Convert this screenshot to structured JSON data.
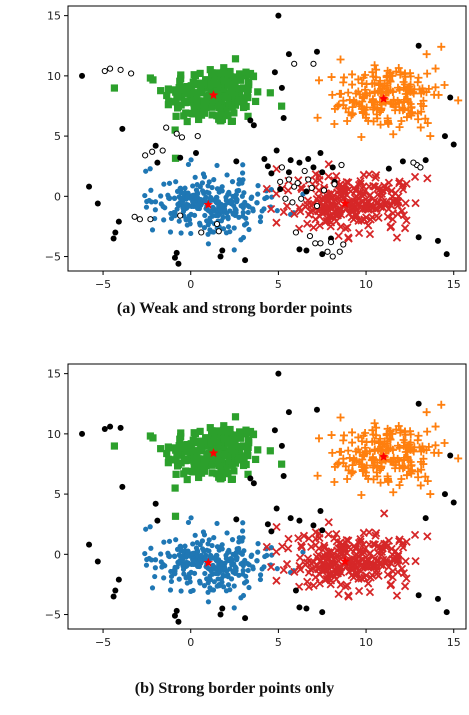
{
  "captions": [
    "(a) Weak and strong border points",
    "(b) Strong border points only"
  ],
  "colors": {
    "blue": "#1f77b4",
    "green": "#2ca02c",
    "orange": "#ff7f0e",
    "red": "#d62728",
    "noise": "#000000",
    "center": "#ff0000"
  },
  "chart_data": [
    {
      "type": "scatter",
      "title": "",
      "xlabel": "",
      "ylabel": "",
      "xlim": [
        -7,
        15.7
      ],
      "ylim": [
        -6.2,
        15.8
      ],
      "xticks": [
        -5,
        0,
        5,
        10,
        15
      ],
      "yticks": [
        -5,
        0,
        5,
        10,
        15
      ],
      "xtick_labels": [
        "−5",
        "0",
        "5",
        "10",
        "15"
      ],
      "ytick_labels": [
        "−5",
        "0",
        "5",
        "10",
        "15"
      ],
      "grid": false,
      "clusters": [
        {
          "marker": "square",
          "color": "green",
          "center": [
            1.3,
            8.4
          ],
          "spread": [
            1.4,
            1.25
          ],
          "count": 230
        },
        {
          "marker": "plus",
          "color": "orange",
          "center": [
            11.0,
            8.2
          ],
          "spread": [
            1.6,
            1.4
          ],
          "count": 210
        },
        {
          "marker": "dot",
          "color": "blue",
          "center": [
            1.0,
            -0.7
          ],
          "spread": [
            1.7,
            1.3
          ],
          "count": 270
        },
        {
          "marker": "x",
          "color": "red",
          "center": [
            9.0,
            -0.5
          ],
          "spread": [
            1.7,
            1.3
          ],
          "count": 260
        }
      ],
      "centers": [
        [
          1.3,
          8.4
        ],
        [
          11.0,
          8.1
        ],
        [
          1.0,
          -0.7
        ],
        [
          8.8,
          -0.6
        ]
      ],
      "noise_points": [
        [
          -6.2,
          10.0
        ],
        [
          -5.8,
          0.8
        ],
        [
          -5.3,
          -0.6
        ],
        [
          -4.3,
          -3.0
        ],
        [
          -4.4,
          -3.5
        ],
        [
          -0.8,
          -4.7
        ],
        [
          -0.9,
          -5.1
        ],
        [
          -0.7,
          -5.6
        ],
        [
          1.8,
          -4.5
        ],
        [
          1.7,
          -5.0
        ],
        [
          3.1,
          -5.3
        ],
        [
          5.0,
          15.0
        ],
        [
          5.6,
          11.8
        ],
        [
          7.2,
          12.0
        ],
        [
          7.5,
          -4.8
        ],
        [
          6.6,
          -4.5
        ],
        [
          6.2,
          -4.4
        ],
        [
          8.0,
          -3.5
        ],
        [
          13.0,
          12.5
        ],
        [
          13.0,
          -3.4
        ],
        [
          14.1,
          -3.7
        ],
        [
          14.6,
          -4.8
        ],
        [
          14.8,
          8.2
        ],
        [
          14.5,
          5.0
        ],
        [
          15.0,
          4.3
        ],
        [
          13.4,
          3.0
        ],
        [
          3.6,
          5.9
        ],
        [
          3.4,
          6.3
        ],
        [
          4.9,
          3.8
        ],
        [
          4.4,
          2.5
        ],
        [
          4.6,
          1.9
        ],
        [
          5.3,
          6.5
        ],
        [
          5.2,
          9.0
        ],
        [
          4.8,
          10.3
        ],
        [
          5.7,
          3.0
        ],
        [
          6.2,
          2.8
        ],
        [
          7.5,
          2.0
        ],
        [
          8.2,
          1.2
        ],
        [
          7.0,
          2.4
        ],
        [
          5.1,
          0.6
        ],
        [
          6.6,
          0.4
        ],
        [
          -4.1,
          -2.1
        ],
        [
          -2.0,
          4.2
        ],
        [
          -1.9,
          2.8
        ],
        [
          -3.9,
          5.6
        ],
        [
          2.6,
          2.9
        ],
        [
          7.4,
          3.6
        ]
      ],
      "weak_border_points": [
        [
          -4.9,
          10.4
        ],
        [
          -4.6,
          10.6
        ],
        [
          -4.0,
          10.5
        ],
        [
          -3.4,
          10.2
        ],
        [
          5.9,
          11.0
        ],
        [
          7.0,
          11.0
        ],
        [
          -1.4,
          5.7
        ],
        [
          -0.8,
          5.2
        ],
        [
          -0.5,
          4.9
        ],
        [
          0.4,
          5.0
        ],
        [
          -2.6,
          3.4
        ],
        [
          -2.2,
          3.7
        ],
        [
          -1.6,
          3.8
        ],
        [
          -3.2,
          -1.7
        ],
        [
          -2.9,
          -1.9
        ],
        [
          -2.3,
          -1.9
        ],
        [
          -0.6,
          -1.6
        ],
        [
          0.6,
          -3.0
        ],
        [
          1.5,
          -2.3
        ],
        [
          1.6,
          -2.9
        ],
        [
          5.1,
          1.2
        ],
        [
          5.6,
          1.4
        ],
        [
          5.9,
          0.8
        ],
        [
          6.1,
          1.1
        ],
        [
          6.5,
          2.1
        ],
        [
          6.7,
          1.4
        ],
        [
          6.9,
          0.7
        ],
        [
          5.4,
          -0.2
        ],
        [
          5.8,
          -0.5
        ],
        [
          6.0,
          -3.0
        ],
        [
          6.8,
          -3.3
        ],
        [
          7.1,
          -3.9
        ],
        [
          7.4,
          -3.9
        ],
        [
          7.8,
          -4.6
        ],
        [
          8.1,
          -5.0
        ],
        [
          8.5,
          -4.6
        ],
        [
          8.0,
          -3.8
        ],
        [
          8.7,
          -4.0
        ],
        [
          7.6,
          0.5
        ],
        [
          8.2,
          1.0
        ],
        [
          8.6,
          2.6
        ],
        [
          12.9,
          2.6
        ],
        [
          13.1,
          2.4
        ],
        [
          12.7,
          2.8
        ],
        [
          6.3,
          -0.2
        ],
        [
          7.2,
          -0.8
        ],
        [
          5.2,
          2.4
        ]
      ],
      "strong_border_points": [
        [
          -0.6,
          3.2
        ],
        [
          0.3,
          3.6
        ],
        [
          4.2,
          3.1
        ],
        [
          5.6,
          2.0
        ],
        [
          6.7,
          3.1
        ],
        [
          8.1,
          2.4
        ],
        [
          11.3,
          2.3
        ],
        [
          12.1,
          2.9
        ]
      ]
    },
    {
      "type": "scatter",
      "title": "",
      "xlabel": "",
      "ylabel": "",
      "xlim": [
        -7,
        15.7
      ],
      "ylim": [
        -6.2,
        15.8
      ],
      "xticks": [
        -5,
        0,
        5,
        10,
        15
      ],
      "yticks": [
        -5,
        0,
        5,
        10,
        15
      ],
      "xtick_labels": [
        "−5",
        "0",
        "5",
        "10",
        "15"
      ],
      "ytick_labels": [
        "−5",
        "0",
        "5",
        "10",
        "15"
      ],
      "grid": false,
      "clusters": [
        {
          "marker": "square",
          "color": "green",
          "center": [
            1.3,
            8.4
          ],
          "spread": [
            1.4,
            1.25
          ],
          "count": 230
        },
        {
          "marker": "plus",
          "color": "orange",
          "center": [
            11.0,
            8.2
          ],
          "spread": [
            1.6,
            1.4
          ],
          "count": 210
        },
        {
          "marker": "dot",
          "color": "blue",
          "center": [
            1.0,
            -0.7
          ],
          "spread": [
            1.7,
            1.3
          ],
          "count": 280
        },
        {
          "marker": "x",
          "color": "red",
          "center": [
            9.0,
            -0.5
          ],
          "spread": [
            1.7,
            1.3
          ],
          "count": 270
        }
      ],
      "centers": [
        [
          1.3,
          8.4
        ],
        [
          11.0,
          8.1
        ],
        [
          1.0,
          -0.7
        ],
        [
          8.8,
          -0.6
        ]
      ],
      "noise_points": [
        [
          -6.2,
          10.0
        ],
        [
          -5.8,
          0.8
        ],
        [
          -5.3,
          -0.6
        ],
        [
          -4.3,
          -3.0
        ],
        [
          -4.4,
          -3.5
        ],
        [
          -0.8,
          -4.7
        ],
        [
          -0.9,
          -5.1
        ],
        [
          -0.7,
          -5.6
        ],
        [
          1.8,
          -4.5
        ],
        [
          1.7,
          -5.0
        ],
        [
          3.1,
          -5.3
        ],
        [
          5.0,
          15.0
        ],
        [
          5.6,
          11.8
        ],
        [
          7.2,
          12.0
        ],
        [
          7.5,
          -4.8
        ],
        [
          6.6,
          -4.5
        ],
        [
          6.2,
          -4.4
        ],
        [
          13.0,
          12.5
        ],
        [
          13.0,
          -3.4
        ],
        [
          14.1,
          -3.7
        ],
        [
          14.6,
          -4.8
        ],
        [
          14.8,
          8.2
        ],
        [
          14.5,
          5.0
        ],
        [
          15.0,
          4.3
        ],
        [
          13.4,
          3.0
        ],
        [
          3.6,
          5.9
        ],
        [
          3.4,
          6.3
        ],
        [
          4.9,
          3.8
        ],
        [
          4.4,
          2.5
        ],
        [
          4.6,
          1.9
        ],
        [
          5.3,
          6.5
        ],
        [
          5.2,
          9.0
        ],
        [
          4.8,
          10.3
        ],
        [
          5.7,
          3.0
        ],
        [
          6.2,
          2.8
        ],
        [
          7.5,
          2.0
        ],
        [
          7.0,
          2.4
        ],
        [
          -4.1,
          -2.1
        ],
        [
          -2.0,
          4.2
        ],
        [
          -1.9,
          2.8
        ],
        [
          -3.9,
          5.6
        ],
        [
          2.6,
          2.9
        ],
        [
          7.4,
          3.6
        ],
        [
          -4.9,
          10.4
        ],
        [
          -4.6,
          10.6
        ],
        [
          -4.0,
          10.5
        ],
        [
          6.0,
          -3.0
        ]
      ]
    }
  ]
}
